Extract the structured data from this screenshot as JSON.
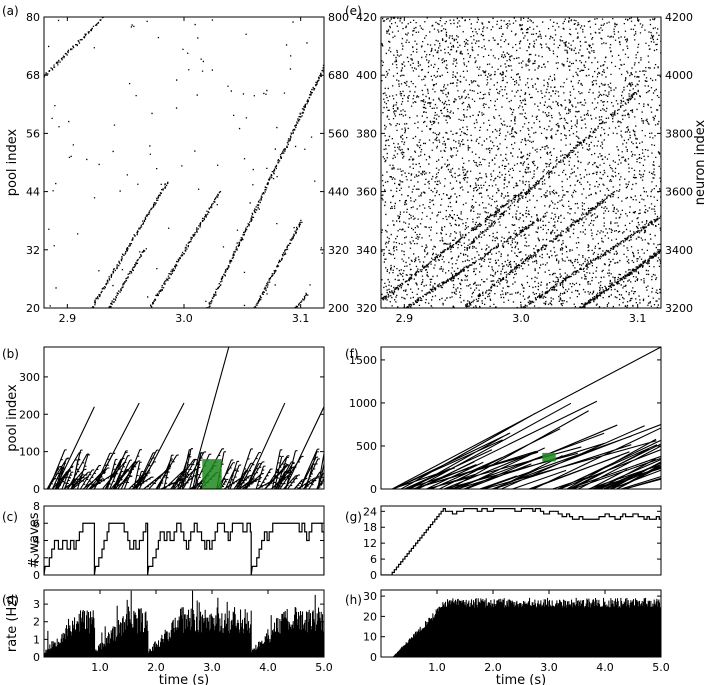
{
  "figure": {
    "background": "#ffffff",
    "ink": "#000000",
    "highlight": "#1f8a1f"
  },
  "panels": [
    {
      "id": "a",
      "label": "(a)",
      "kind": "raster_waves",
      "seed": 11,
      "xlim": [
        2.88,
        3.12
      ],
      "ylim": [
        20,
        80
      ],
      "xticks": [
        2.9,
        3.0,
        3.1
      ],
      "xticklabels": [
        "2.9",
        "3.0",
        "3.1"
      ],
      "yticks": [
        20,
        32,
        44,
        56,
        68,
        80
      ],
      "yticklabels": [
        "20",
        "32",
        "44",
        "56",
        "68",
        "80"
      ],
      "ylabel": "pool index",
      "right_yticks": [
        200,
        320,
        440,
        560,
        680,
        800
      ],
      "right_yticklabels": [
        "200",
        "320",
        "440",
        "560",
        "680",
        "800"
      ],
      "waves": [
        [
          2.88,
          68,
          2.93,
          80
        ],
        [
          2.92,
          20,
          2.985,
          46
        ],
        [
          2.97,
          20,
          3.03,
          44
        ],
        [
          3.02,
          20,
          3.12,
          70
        ],
        [
          3.06,
          20,
          3.1,
          38
        ],
        [
          2.935,
          20,
          2.965,
          32
        ],
        [
          3.095,
          20,
          3.105,
          23
        ]
      ],
      "noise_density": 110
    },
    {
      "id": "e",
      "label": "(e)",
      "kind": "raster_dense",
      "seed": 23,
      "xlim": [
        2.88,
        3.12
      ],
      "ylim": [
        320,
        420
      ],
      "xticks": [
        2.9,
        3.0,
        3.1
      ],
      "xticklabels": [
        "2.9",
        "3.0",
        "3.1"
      ],
      "yticks": [
        320,
        340,
        360,
        380,
        400,
        420
      ],
      "yticklabels": [
        "320",
        "340",
        "360",
        "380",
        "400",
        "420"
      ],
      "right_yticks": [
        3200,
        3400,
        3600,
        3800,
        4000,
        4200
      ],
      "right_yticklabels": [
        "3200",
        "3400",
        "3600",
        "3800",
        "4000",
        "4200"
      ],
      "right_ylabel": "neuron index",
      "waves": [
        [
          2.88,
          323,
          3.0,
          360
        ],
        [
          2.9,
          320,
          3.02,
          352
        ],
        [
          2.95,
          320,
          3.08,
          360
        ],
        [
          3.0,
          320,
          3.12,
          352
        ],
        [
          3.05,
          320,
          3.12,
          340
        ],
        [
          2.95,
          340,
          3.1,
          395
        ]
      ],
      "noise_density": 4200
    },
    {
      "id": "b",
      "label": "(b)",
      "kind": "waves_time",
      "seed": 37,
      "xlim": [
        0,
        5
      ],
      "ylim": [
        0,
        380
      ],
      "yticks": [
        0,
        100,
        200,
        300
      ],
      "yticklabels": [
        "0",
        "100",
        "200",
        "300"
      ],
      "ylabel": "pool index",
      "highlight_box": {
        "x0": 2.88,
        "x1": 3.12,
        "y0": 20,
        "y1": 80
      },
      "big_waves": [
        [
          0.2,
          0.9,
          220
        ],
        [
          0.9,
          1.7,
          230
        ],
        [
          1.7,
          2.5,
          230
        ],
        [
          2.6,
          3.3,
          380
        ],
        [
          3.6,
          4.3,
          230
        ],
        [
          4.3,
          5.0,
          220
        ]
      ],
      "small_wave_starts": 130
    },
    {
      "id": "c",
      "kind": "step_waves",
      "seed": 41,
      "xlim": [
        0,
        5
      ],
      "ylim": [
        0,
        8
      ],
      "yticks": [
        0,
        2,
        4,
        6,
        8
      ],
      "yticklabels": [
        "0",
        "2",
        "4",
        "6",
        "8"
      ],
      "ylabel": "# waves",
      "resets": [
        0.0,
        0.9,
        1.85,
        3.7
      ]
    },
    {
      "id": "d",
      "kind": "rate_bars",
      "seed": 53,
      "xlim": [
        0,
        5
      ],
      "ylim": [
        0,
        3.8
      ],
      "xticks": [
        1,
        2,
        3,
        4,
        5
      ],
      "xticklabels": [
        "1.0",
        "2.0",
        "3.0",
        "4.0",
        "5.0"
      ],
      "yticks": [
        0,
        1,
        2,
        3
      ],
      "yticklabels": [
        "0",
        "1",
        "2",
        "3"
      ],
      "ylabel": "rate (Hz)",
      "xlabel": "time (s)",
      "resets": [
        0.0,
        0.9,
        1.85,
        3.7
      ]
    },
    {
      "id": "f",
      "label": "(f)",
      "kind": "waves_long",
      "seed": 67,
      "xlim": [
        0,
        5
      ],
      "ylim": [
        0,
        1650
      ],
      "yticks": [
        0,
        500,
        1000,
        1500
      ],
      "yticklabels": [
        "0",
        "500",
        "1000",
        "1500"
      ],
      "highlight_box": {
        "x0": 2.88,
        "x1": 3.12,
        "y0": 320,
        "y1": 420
      },
      "steep_line": [
        0.2,
        0,
        5.0,
        1650
      ]
    },
    {
      "id": "g",
      "kind": "step_ramp",
      "seed": 71,
      "xlim": [
        0,
        5
      ],
      "ylim": [
        0,
        26
      ],
      "yticks": [
        0,
        6,
        12,
        18,
        24
      ],
      "yticklabels": [
        "0",
        "6",
        "12",
        "18",
        "24"
      ],
      "ramp_end": [
        1.15,
        25
      ]
    },
    {
      "id": "h",
      "label": "(h)",
      "kind": "rate_ramp",
      "seed": 83,
      "xlim": [
        0,
        5
      ],
      "ylim": [
        0,
        33
      ],
      "xticks": [
        1,
        2,
        3,
        4,
        5
      ],
      "xticklabels": [
        "1.0",
        "2.0",
        "3.0",
        "4.0",
        "5.0"
      ],
      "yticks": [
        0,
        10,
        20,
        30
      ],
      "yticklabels": [
        "0",
        "10",
        "20",
        "30"
      ],
      "xlabel": "time (s)",
      "plateau": 27
    }
  ],
  "chart_data": [
    {
      "panel": "(a)",
      "type": "scatter",
      "ylabel": "pool index",
      "xlim": [
        2.88,
        3.12
      ],
      "ylim": [
        20,
        80
      ],
      "right_ylim": [
        200,
        800
      ]
    },
    {
      "panel": "(e)",
      "type": "scatter",
      "ylabel": "neuron index",
      "xlim": [
        2.88,
        3.12
      ],
      "ylim": [
        320,
        420
      ],
      "right_ylim": [
        3200,
        4200
      ]
    },
    {
      "panel": "(b)",
      "type": "line",
      "ylabel": "pool index",
      "xlim": [
        0,
        5
      ],
      "ylim": [
        0,
        380
      ]
    },
    {
      "panel": "(c)",
      "type": "line",
      "ylabel": "# waves",
      "xlim": [
        0,
        5
      ],
      "ylim": [
        0,
        8
      ]
    },
    {
      "panel": "(d)",
      "type": "bar",
      "ylabel": "rate (Hz)",
      "xlabel": "time (s)",
      "xlim": [
        0,
        5
      ],
      "ylim": [
        0,
        3.8
      ]
    },
    {
      "panel": "(f)",
      "type": "line",
      "xlim": [
        0,
        5
      ],
      "ylim": [
        0,
        1650
      ]
    },
    {
      "panel": "(g)",
      "type": "line",
      "xlim": [
        0,
        5
      ],
      "ylim": [
        0,
        26
      ]
    },
    {
      "panel": "(h)",
      "type": "bar",
      "xlabel": "time (s)",
      "xlim": [
        0,
        5
      ],
      "ylim": [
        0,
        33
      ]
    }
  ]
}
